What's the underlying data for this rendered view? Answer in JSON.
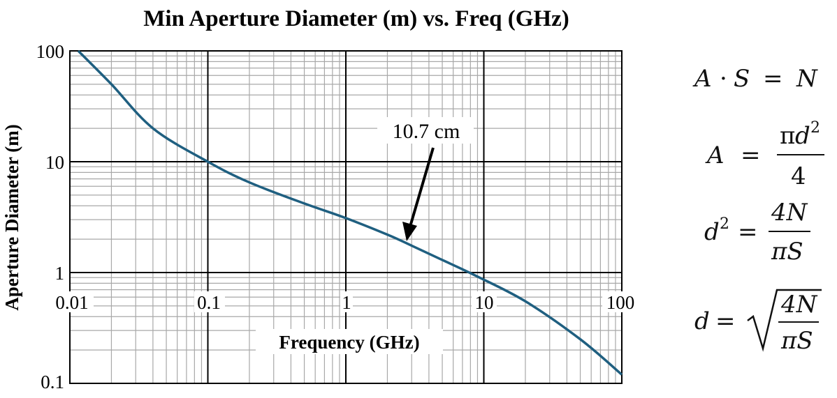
{
  "chart_data": {
    "type": "line",
    "title": "Min Aperture Diameter (m) vs. Freq (GHz)",
    "xlabel": "Frequency (GHz)",
    "ylabel": "Aperture Diameter (m)",
    "x_scale": "log",
    "y_scale": "log",
    "xlim": [
      0.01,
      100
    ],
    "ylim": [
      0.1,
      100
    ],
    "x_ticks": [
      "0.01",
      "0.1",
      "1",
      "10",
      "100"
    ],
    "y_ticks": [
      "100",
      "10",
      "1",
      "0.1"
    ],
    "grid": true,
    "line_color": "#1f5f80",
    "series": [
      {
        "x": [
          0.0115,
          0.02,
          0.04,
          0.1,
          0.2,
          0.5,
          1,
          2,
          3,
          5,
          9,
          20,
          50,
          100
        ],
        "values": [
          100,
          50,
          20,
          10,
          6.5,
          4.2,
          3.1,
          2.2,
          1.75,
          1.3,
          0.92,
          0.55,
          0.25,
          0.12
        ]
      }
    ],
    "annotations": [
      {
        "text": "10.7 cm",
        "x": 2.8,
        "y": 1.8
      }
    ]
  },
  "equations": {
    "eq1": {
      "lhs_a": "A",
      "dot": "·",
      "s": "S",
      "eq": "=",
      "n": "N"
    },
    "eq2": {
      "lhs": "A",
      "eq": "=",
      "num_pi": "π",
      "num_d": "d",
      "num_exp": "2",
      "den": "4"
    },
    "eq3": {
      "lhs_d": "d",
      "lhs_exp": "2",
      "eq": "=",
      "num": "4N",
      "den": "πS"
    },
    "eq4": {
      "lhs": "d",
      "eq": "=",
      "num": "4N",
      "den": "πS"
    }
  }
}
